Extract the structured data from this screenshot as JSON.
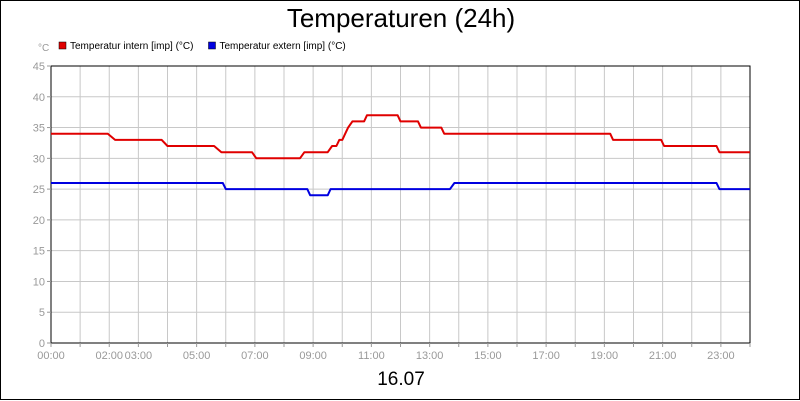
{
  "chart_data": {
    "type": "line",
    "title": "Temperaturen (24h)",
    "xlabel": "16.07",
    "ylabel": "°C",
    "ylim": [
      0,
      45
    ],
    "yticks": [
      0,
      5,
      10,
      15,
      20,
      25,
      30,
      35,
      40,
      45
    ],
    "xlim": [
      0,
      24
    ],
    "xtick_labels": [
      {
        "t": 0,
        "label": "00:00"
      },
      {
        "t": 2,
        "label": "02:00"
      },
      {
        "t": 3,
        "label": "03:00"
      },
      {
        "t": 5,
        "label": "05:00"
      },
      {
        "t": 7,
        "label": "07:00"
      },
      {
        "t": 9,
        "label": "09:00"
      },
      {
        "t": 11,
        "label": "11:00"
      },
      {
        "t": 13,
        "label": "13:00"
      },
      {
        "t": 15,
        "label": "15:00"
      },
      {
        "t": 17,
        "label": "17:00"
      },
      {
        "t": 19,
        "label": "19:00"
      },
      {
        "t": 21,
        "label": "21:00"
      },
      {
        "t": 23,
        "label": "23:00"
      }
    ],
    "grid": true,
    "legend_position": "top-left",
    "series": [
      {
        "name": "Temperatur intern [imp] (°C)",
        "color": "#e00000",
        "points": [
          [
            0,
            34
          ],
          [
            1.95,
            34
          ],
          [
            2.2,
            33
          ],
          [
            3.8,
            33
          ],
          [
            4.0,
            32
          ],
          [
            5.6,
            32
          ],
          [
            5.85,
            31
          ],
          [
            6.9,
            31
          ],
          [
            7.05,
            30
          ],
          [
            8.55,
            30
          ],
          [
            8.7,
            31
          ],
          [
            9.5,
            31
          ],
          [
            9.65,
            32
          ],
          [
            9.8,
            32
          ],
          [
            9.9,
            33
          ],
          [
            10.0,
            33
          ],
          [
            10.1,
            34
          ],
          [
            10.2,
            35
          ],
          [
            10.35,
            36
          ],
          [
            10.75,
            36
          ],
          [
            10.85,
            37
          ],
          [
            11.9,
            37
          ],
          [
            12.0,
            36
          ],
          [
            12.6,
            36
          ],
          [
            12.7,
            35
          ],
          [
            13.4,
            35
          ],
          [
            13.5,
            34
          ],
          [
            19.2,
            34
          ],
          [
            19.3,
            33
          ],
          [
            20.95,
            33
          ],
          [
            21.05,
            32
          ],
          [
            22.85,
            32
          ],
          [
            22.95,
            31
          ],
          [
            24,
            31
          ]
        ]
      },
      {
        "name": "Temperatur extern [imp] (°C)",
        "color": "#0000e0",
        "points": [
          [
            0,
            26
          ],
          [
            5.9,
            26
          ],
          [
            6.0,
            25
          ],
          [
            8.8,
            25
          ],
          [
            8.9,
            24
          ],
          [
            9.5,
            24
          ],
          [
            9.6,
            25
          ],
          [
            13.7,
            25
          ],
          [
            13.85,
            26
          ],
          [
            22.85,
            26
          ],
          [
            22.95,
            25
          ],
          [
            24,
            25
          ]
        ]
      }
    ]
  }
}
